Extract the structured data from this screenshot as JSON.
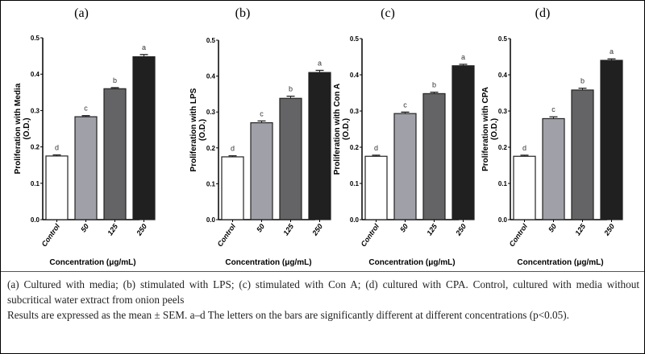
{
  "chart_data": [
    {
      "type": "bar",
      "panel_label": "(a)",
      "ylabel": "Proliferation with Media",
      "ylabel2": "(O.D.)",
      "xlabel": "Concentration (μg/mL)",
      "categories": [
        "Control",
        "50",
        "125",
        "250"
      ],
      "values": [
        0.175,
        0.283,
        0.36,
        0.448
      ],
      "errors": [
        0.003,
        0.003,
        0.003,
        0.006
      ],
      "letters": [
        "d",
        "c",
        "b",
        "a"
      ],
      "ylim": [
        0,
        0.5
      ],
      "yticks": [
        "0.0",
        "0.1",
        "0.2",
        "0.3",
        "0.4",
        "0.5"
      ]
    },
    {
      "type": "bar",
      "panel_label": "(b)",
      "ylabel": "Proliferation with LPS",
      "ylabel2": "(O.D.)",
      "xlabel": "Concentration (μg/mL)",
      "categories": [
        "Control",
        "50",
        "125",
        "250"
      ],
      "values": [
        0.175,
        0.27,
        0.338,
        0.41
      ],
      "errors": [
        0.003,
        0.005,
        0.006,
        0.006
      ],
      "letters": [
        "d",
        "c",
        "b",
        "a"
      ],
      "ylim": [
        0,
        0.5
      ],
      "yticks": [
        "0.0",
        "0.1",
        "0.2",
        "0.3",
        "0.4",
        "0.5"
      ]
    },
    {
      "type": "bar",
      "panel_label": "(c)",
      "ylabel": "Proliferation with Con A",
      "ylabel2": "(O.D.)",
      "xlabel": "Concentration (μg/mL)",
      "categories": [
        "Control",
        "50",
        "125",
        "250"
      ],
      "values": [
        0.175,
        0.293,
        0.348,
        0.425
      ],
      "errors": [
        0.003,
        0.004,
        0.004,
        0.004
      ],
      "letters": [
        "d",
        "c",
        "b",
        "a"
      ],
      "ylim": [
        0,
        0.5
      ],
      "yticks": [
        "0.0",
        "0.1",
        "0.2",
        "0.3",
        "0.4",
        "0.5"
      ]
    },
    {
      "type": "bar",
      "panel_label": "(d)",
      "ylabel": "Proliferation with CPA",
      "ylabel2": "(O.D.)",
      "xlabel": "Concentration (μg/mL)",
      "categories": [
        "Control",
        "50",
        "125",
        "250"
      ],
      "values": [
        0.175,
        0.279,
        0.358,
        0.44
      ],
      "errors": [
        0.003,
        0.005,
        0.005,
        0.004
      ],
      "letters": [
        "d",
        "c",
        "b",
        "a"
      ],
      "ylim": [
        0,
        0.5
      ],
      "yticks": [
        "0.0",
        "0.1",
        "0.2",
        "0.3",
        "0.4",
        "0.5"
      ]
    }
  ],
  "bar_colors": [
    "#ffffff",
    "#a0a0a8",
    "#646466",
    "#202020"
  ],
  "caption": {
    "line1": "(a) Cultured with media; (b) stimulated with LPS; (c) stimulated with Con A; (d) cultured with CPA. Control, cultured with media without subcritical water extract from onion peels",
    "line2": "Results are expressed as the mean ± SEM. a–d The letters on the bars are significantly different at different concentrations (p<0.05)."
  }
}
